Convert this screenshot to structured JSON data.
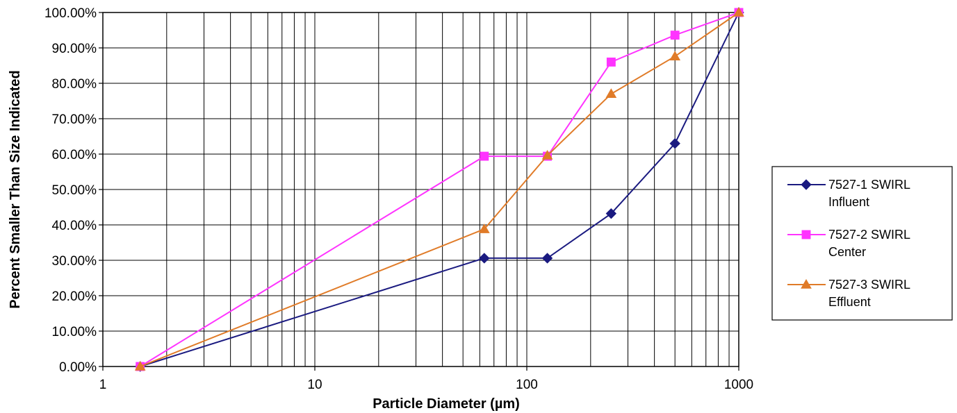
{
  "chart_data": {
    "type": "line",
    "title": "",
    "xlabel": "Particle Diameter (µm)",
    "ylabel": "Percent Smaller Than Size Indicated",
    "x_scale": "log",
    "xlim": [
      1,
      1000
    ],
    "ylim": [
      0,
      100
    ],
    "x_ticks": [
      1,
      10,
      100,
      1000
    ],
    "x_tick_labels": [
      "1",
      "10",
      "100",
      "1000"
    ],
    "y_ticks": [
      0,
      10,
      20,
      30,
      40,
      50,
      60,
      70,
      80,
      90,
      100
    ],
    "y_tick_labels": [
      "0.00%",
      "10.00%",
      "20.00%",
      "30.00%",
      "40.00%",
      "50.00%",
      "60.00%",
      "70.00%",
      "80.00%",
      "90.00%",
      "100.00%"
    ],
    "grid": true,
    "legend_position": "right",
    "series": [
      {
        "name": "7527-1 SWIRL Influent",
        "legend_lines": [
          "7527-1 SWIRL",
          "Influent"
        ],
        "color": "#1a1a80",
        "marker": "diamond",
        "x": [
          1.5,
          63,
          125,
          250,
          500,
          1000
        ],
        "y": [
          0.0,
          30.6,
          30.6,
          43.2,
          63.0,
          100.0
        ]
      },
      {
        "name": "7527-2 SWIRL Center",
        "legend_lines": [
          "7527-2 SWIRL",
          "Center"
        ],
        "color": "#ff33ff",
        "marker": "square",
        "x": [
          1.5,
          63,
          125,
          250,
          500,
          1000
        ],
        "y": [
          0.0,
          59.4,
          59.4,
          86.0,
          93.6,
          100.0
        ]
      },
      {
        "name": "7527-3 SWIRL Effluent",
        "legend_lines": [
          "7527-3 SWIRL",
          "Effluent"
        ],
        "color": "#e07b28",
        "marker": "triangle",
        "x": [
          1.5,
          63,
          125,
          250,
          500,
          1000
        ],
        "y": [
          0.0,
          38.8,
          59.6,
          77.0,
          87.6,
          100.0
        ]
      }
    ]
  }
}
